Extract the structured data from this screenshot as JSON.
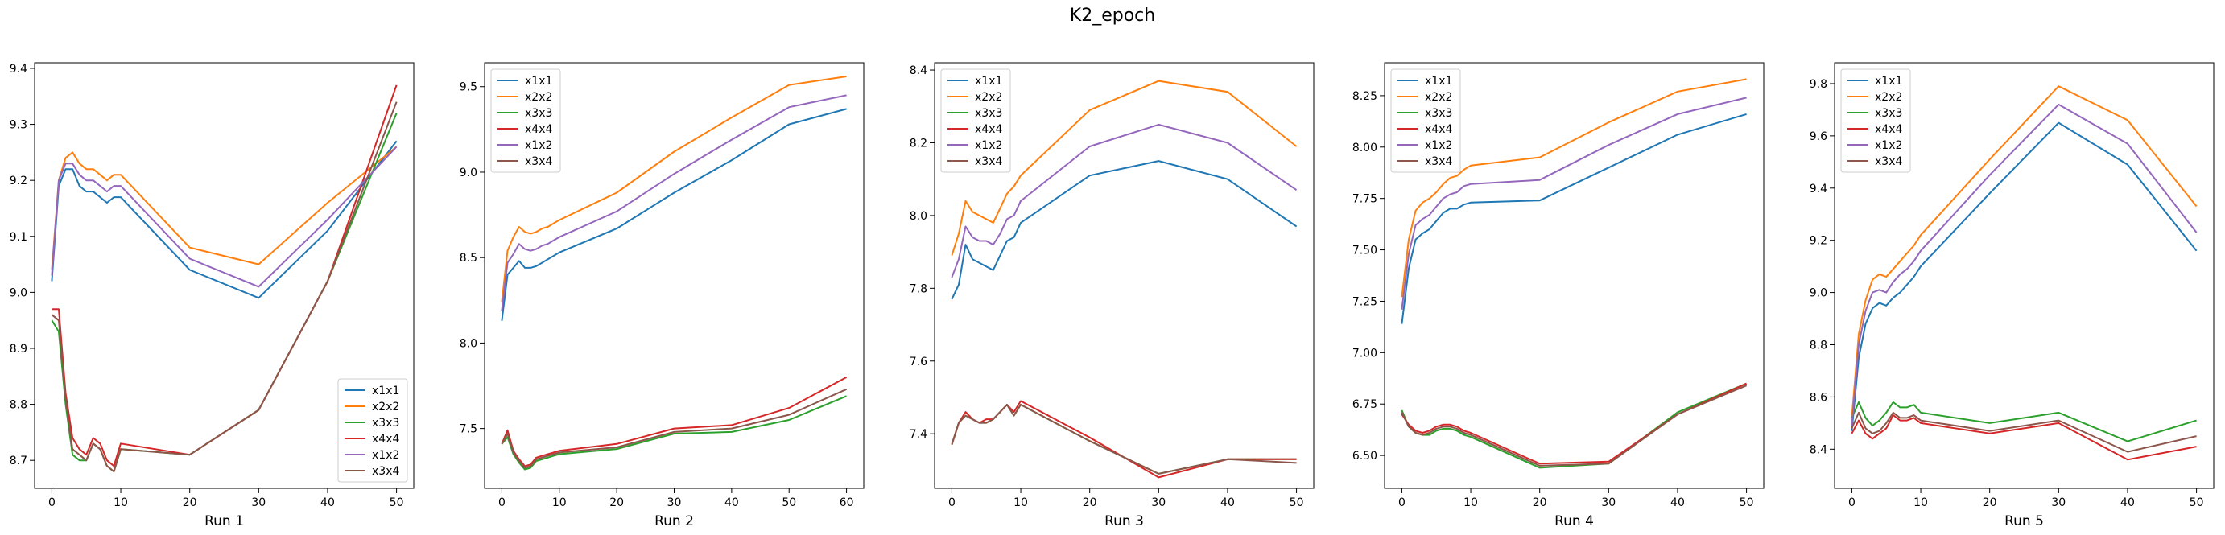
{
  "figure": {
    "suptitle": "K2_epoch"
  },
  "colors": {
    "x1x1": "#1f77b4",
    "x2x2": "#ff7f0e",
    "x3x3": "#2ca02c",
    "x4x4": "#d62728",
    "x1x2": "#9467bd",
    "x3x4": "#8c564b"
  },
  "chart_data": [
    {
      "type": "line",
      "title": "Run 1",
      "xlim": [
        -2.5,
        52.5
      ],
      "ylim": [
        8.65,
        9.41
      ],
      "xticks": [
        0,
        10,
        20,
        30,
        40,
        50
      ],
      "yticks": [
        8.7,
        8.8,
        8.9,
        9.0,
        9.1,
        9.2,
        9.3,
        9.4
      ],
      "ytick_labels": [
        "8.7",
        "8.8",
        "8.9",
        "9.0",
        "9.1",
        "9.2",
        "9.3",
        "9.4"
      ],
      "legend_loc": "lower right",
      "x": [
        0,
        1,
        2,
        3,
        4,
        5,
        6,
        7,
        8,
        9,
        10,
        20,
        30,
        40,
        50
      ],
      "series": [
        {
          "name": "x1x1",
          "values": [
            9.02,
            9.19,
            9.22,
            9.22,
            9.19,
            9.18,
            9.18,
            9.17,
            9.16,
            9.17,
            9.17,
            9.04,
            8.99,
            9.11,
            9.27
          ]
        },
        {
          "name": "x2x2",
          "values": [
            9.04,
            9.2,
            9.24,
            9.25,
            9.23,
            9.22,
            9.22,
            9.21,
            9.2,
            9.21,
            9.21,
            9.08,
            9.05,
            9.16,
            9.26
          ]
        },
        {
          "name": "x3x3",
          "values": [
            8.95,
            8.93,
            8.8,
            8.71,
            8.7,
            8.7,
            8.73,
            8.72,
            8.69,
            8.68,
            8.72,
            8.71,
            8.79,
            9.02,
            9.32
          ]
        },
        {
          "name": "x4x4",
          "values": [
            8.97,
            8.97,
            8.82,
            8.74,
            8.72,
            8.71,
            8.74,
            8.73,
            8.7,
            8.69,
            8.73,
            8.71,
            8.79,
            9.02,
            9.37
          ]
        },
        {
          "name": "x1x2",
          "values": [
            9.03,
            9.2,
            9.23,
            9.23,
            9.21,
            9.2,
            9.2,
            9.19,
            9.18,
            9.19,
            9.19,
            9.06,
            9.01,
            9.13,
            9.26
          ]
        },
        {
          "name": "x3x4",
          "values": [
            8.96,
            8.95,
            8.81,
            8.72,
            8.71,
            8.7,
            8.73,
            8.72,
            8.69,
            8.68,
            8.72,
            8.71,
            8.79,
            9.02,
            9.34
          ]
        }
      ]
    },
    {
      "type": "line",
      "title": "Run 2",
      "xlim": [
        -3,
        63
      ],
      "ylim": [
        7.15,
        9.64
      ],
      "xticks": [
        0,
        10,
        20,
        30,
        40,
        50,
        60
      ],
      "yticks": [
        7.5,
        8.0,
        8.5,
        9.0,
        9.5
      ],
      "ytick_labels": [
        "7.5",
        "8.0",
        "8.5",
        "9.0",
        "9.5"
      ],
      "legend_loc": "upper left",
      "x": [
        0,
        1,
        2,
        3,
        4,
        5,
        6,
        7,
        8,
        9,
        10,
        20,
        30,
        40,
        50,
        60
      ],
      "series": [
        {
          "name": "x1x1",
          "values": [
            8.13,
            8.4,
            8.44,
            8.48,
            8.44,
            8.44,
            8.45,
            8.47,
            8.49,
            8.51,
            8.53,
            8.67,
            8.88,
            9.07,
            9.28,
            9.37
          ]
        },
        {
          "name": "x2x2",
          "values": [
            8.24,
            8.54,
            8.62,
            8.68,
            8.65,
            8.64,
            8.65,
            8.67,
            8.68,
            8.7,
            8.72,
            8.88,
            9.12,
            9.32,
            9.51,
            9.56
          ]
        },
        {
          "name": "x3x3",
          "values": [
            7.41,
            7.45,
            7.35,
            7.3,
            7.26,
            7.27,
            7.31,
            7.32,
            7.33,
            7.34,
            7.35,
            7.38,
            7.47,
            7.48,
            7.55,
            7.69
          ]
        },
        {
          "name": "x4x4",
          "values": [
            7.41,
            7.49,
            7.37,
            7.32,
            7.28,
            7.29,
            7.33,
            7.34,
            7.35,
            7.36,
            7.37,
            7.41,
            7.5,
            7.52,
            7.62,
            7.8
          ]
        },
        {
          "name": "x1x2",
          "values": [
            8.19,
            8.47,
            8.52,
            8.58,
            8.55,
            8.54,
            8.55,
            8.57,
            8.58,
            8.6,
            8.62,
            8.77,
            8.99,
            9.19,
            9.38,
            9.45
          ]
        },
        {
          "name": "x3x4",
          "values": [
            7.41,
            7.47,
            7.36,
            7.31,
            7.27,
            7.28,
            7.32,
            7.33,
            7.34,
            7.35,
            7.36,
            7.39,
            7.48,
            7.5,
            7.58,
            7.73
          ]
        }
      ]
    },
    {
      "type": "line",
      "title": "Run 3",
      "xlim": [
        -2.5,
        52.5
      ],
      "ylim": [
        7.25,
        8.42
      ],
      "xticks": [
        0,
        10,
        20,
        30,
        40,
        50
      ],
      "yticks": [
        7.4,
        7.6,
        7.8,
        8.0,
        8.2,
        8.4
      ],
      "ytick_labels": [
        "7.4",
        "7.6",
        "7.8",
        "8.0",
        "8.2",
        "8.4"
      ],
      "legend_loc": "upper left",
      "x": [
        0,
        1,
        2,
        3,
        4,
        5,
        6,
        7,
        8,
        9,
        10,
        20,
        30,
        40,
        50
      ],
      "series": [
        {
          "name": "x1x1",
          "values": [
            7.77,
            7.81,
            7.92,
            7.88,
            7.87,
            7.86,
            7.85,
            7.89,
            7.93,
            7.94,
            7.98,
            8.11,
            8.15,
            8.1,
            7.97
          ]
        },
        {
          "name": "x2x2",
          "values": [
            7.89,
            7.95,
            8.04,
            8.01,
            8.0,
            7.99,
            7.98,
            8.02,
            8.06,
            8.08,
            8.11,
            8.29,
            8.37,
            8.34,
            8.19
          ]
        },
        {
          "name": "x3x3",
          "values": [
            7.37,
            7.43,
            7.45,
            7.44,
            7.43,
            7.43,
            7.44,
            7.46,
            7.48,
            7.45,
            7.48,
            7.38,
            7.29,
            7.33,
            7.33
          ]
        },
        {
          "name": "x4x4",
          "values": [
            7.37,
            7.43,
            7.46,
            7.44,
            7.43,
            7.44,
            7.44,
            7.46,
            7.48,
            7.46,
            7.49,
            7.39,
            7.28,
            7.33,
            7.33
          ]
        },
        {
          "name": "x1x2",
          "values": [
            7.83,
            7.88,
            7.97,
            7.94,
            7.93,
            7.93,
            7.92,
            7.95,
            7.99,
            8.0,
            8.04,
            8.19,
            8.25,
            8.2,
            8.07
          ]
        },
        {
          "name": "x3x4",
          "values": [
            7.37,
            7.43,
            7.45,
            7.44,
            7.43,
            7.43,
            7.44,
            7.46,
            7.48,
            7.45,
            7.48,
            7.38,
            7.29,
            7.33,
            7.32
          ]
        }
      ]
    },
    {
      "type": "line",
      "title": "Run 4",
      "xlim": [
        -2.5,
        52.5
      ],
      "ylim": [
        6.34,
        8.41
      ],
      "xticks": [
        0,
        10,
        20,
        30,
        40,
        50
      ],
      "yticks": [
        6.5,
        6.75,
        7.0,
        7.25,
        7.5,
        7.75,
        8.0,
        8.25
      ],
      "ytick_labels": [
        "6.50",
        "6.75",
        "7.00",
        "7.25",
        "7.50",
        "7.75",
        "8.00",
        "8.25"
      ],
      "legend_loc": "upper left",
      "x": [
        0,
        1,
        2,
        3,
        4,
        5,
        6,
        7,
        8,
        9,
        10,
        20,
        30,
        40,
        50
      ],
      "series": [
        {
          "name": "x1x1",
          "values": [
            7.14,
            7.41,
            7.55,
            7.58,
            7.6,
            7.64,
            7.68,
            7.7,
            7.7,
            7.72,
            7.73,
            7.74,
            7.9,
            8.06,
            8.16
          ]
        },
        {
          "name": "x2x2",
          "values": [
            7.27,
            7.55,
            7.69,
            7.73,
            7.75,
            7.78,
            7.82,
            7.85,
            7.86,
            7.89,
            7.91,
            7.95,
            8.12,
            8.27,
            8.33
          ]
        },
        {
          "name": "x3x3",
          "values": [
            6.72,
            6.64,
            6.61,
            6.6,
            6.6,
            6.62,
            6.63,
            6.63,
            6.62,
            6.6,
            6.59,
            6.44,
            6.46,
            6.71,
            6.85
          ]
        },
        {
          "name": "x4x4",
          "values": [
            6.7,
            6.65,
            6.62,
            6.61,
            6.62,
            6.64,
            6.65,
            6.65,
            6.64,
            6.62,
            6.61,
            6.46,
            6.47,
            6.7,
            6.85
          ]
        },
        {
          "name": "x1x2",
          "values": [
            7.21,
            7.48,
            7.62,
            7.65,
            7.67,
            7.71,
            7.75,
            7.77,
            7.78,
            7.81,
            7.82,
            7.84,
            8.01,
            8.16,
            8.24
          ]
        },
        {
          "name": "x3x4",
          "values": [
            6.71,
            6.64,
            6.61,
            6.6,
            6.61,
            6.63,
            6.64,
            6.64,
            6.63,
            6.61,
            6.6,
            6.45,
            6.46,
            6.7,
            6.84
          ]
        }
      ]
    },
    {
      "type": "line",
      "title": "Run 5",
      "xlim": [
        -2.5,
        52.5
      ],
      "ylim": [
        8.25,
        9.88
      ],
      "xticks": [
        0,
        10,
        20,
        30,
        40,
        50
      ],
      "yticks": [
        8.4,
        8.6,
        8.8,
        9.0,
        9.2,
        9.4,
        9.6,
        9.8
      ],
      "ytick_labels": [
        "8.4",
        "8.6",
        "8.8",
        "9.0",
        "9.2",
        "9.4",
        "9.6",
        "9.8"
      ],
      "legend_loc": "upper left",
      "x": [
        0,
        1,
        2,
        3,
        4,
        5,
        6,
        7,
        8,
        9,
        10,
        20,
        30,
        40,
        50
      ],
      "series": [
        {
          "name": "x1x1",
          "values": [
            8.47,
            8.75,
            8.88,
            8.94,
            8.96,
            8.95,
            8.98,
            9.0,
            9.03,
            9.06,
            9.1,
            9.38,
            9.65,
            9.49,
            9.16
          ]
        },
        {
          "name": "x2x2",
          "values": [
            8.52,
            8.84,
            8.97,
            9.05,
            9.07,
            9.06,
            9.09,
            9.12,
            9.15,
            9.18,
            9.22,
            9.51,
            9.79,
            9.66,
            9.33
          ]
        },
        {
          "name": "x3x3",
          "values": [
            8.52,
            8.58,
            8.52,
            8.49,
            8.51,
            8.54,
            8.58,
            8.56,
            8.56,
            8.57,
            8.54,
            8.5,
            8.54,
            8.43,
            8.51
          ]
        },
        {
          "name": "x4x4",
          "values": [
            8.46,
            8.51,
            8.46,
            8.44,
            8.46,
            8.48,
            8.53,
            8.51,
            8.51,
            8.52,
            8.5,
            8.46,
            8.5,
            8.36,
            8.41
          ]
        },
        {
          "name": "x1x2",
          "values": [
            8.49,
            8.8,
            8.93,
            9.0,
            9.01,
            9.0,
            9.04,
            9.07,
            9.09,
            9.12,
            9.16,
            9.45,
            9.72,
            9.57,
            9.23
          ]
        },
        {
          "name": "x3x4",
          "values": [
            8.48,
            8.54,
            8.48,
            8.46,
            8.47,
            8.5,
            8.54,
            8.52,
            8.52,
            8.53,
            8.51,
            8.47,
            8.51,
            8.39,
            8.45
          ]
        }
      ]
    }
  ]
}
